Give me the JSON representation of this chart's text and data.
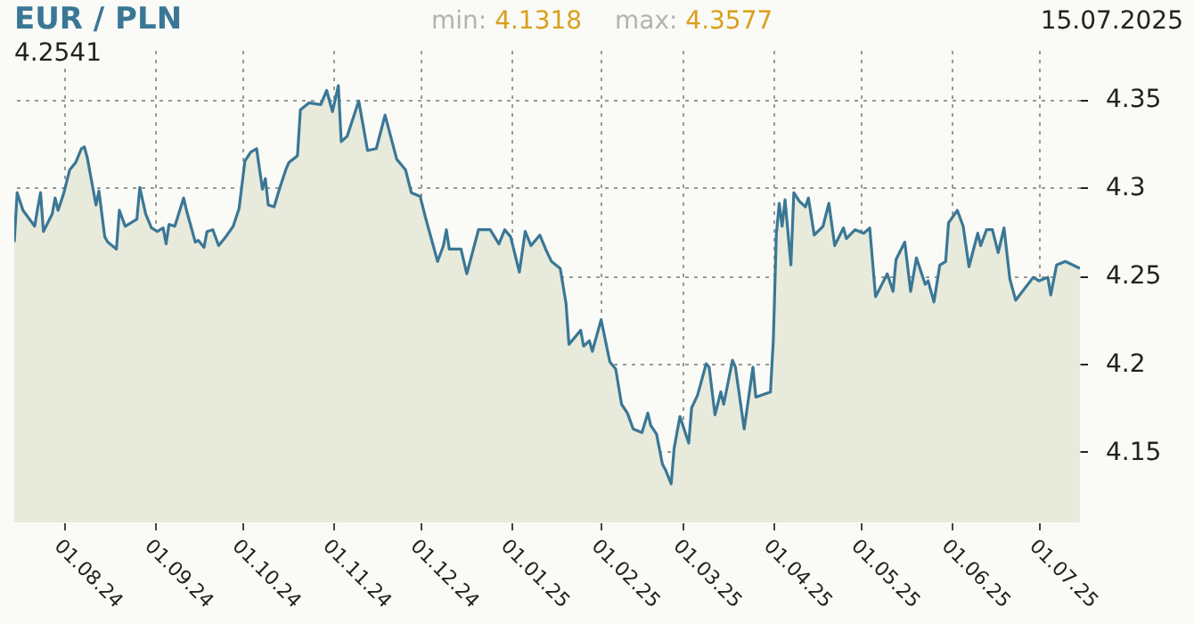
{
  "chart_data": {
    "type": "area",
    "title": "EUR / PLN",
    "annotations": [
      "4.2541",
      "min: 4.1318",
      "max: 4.3577",
      "15.07.2025"
    ],
    "x": [
      "2024-07-15",
      "2024-07-16",
      "2024-07-18",
      "2024-07-22",
      "2024-07-23",
      "2024-07-24",
      "2024-07-25",
      "2024-07-28",
      "2024-07-29",
      "2024-07-30",
      "2024-08-01",
      "2024-08-03",
      "2024-08-05",
      "2024-08-07",
      "2024-08-08",
      "2024-08-09",
      "2024-08-12",
      "2024-08-13",
      "2024-08-15",
      "2024-08-16",
      "2024-08-19",
      "2024-08-20",
      "2024-08-22",
      "2024-08-24",
      "2024-08-26",
      "2024-08-27",
      "2024-08-29",
      "2024-08-31",
      "2024-09-02",
      "2024-09-04",
      "2024-09-05",
      "2024-09-06",
      "2024-09-08",
      "2024-09-11",
      "2024-09-12",
      "2024-09-15",
      "2024-09-16",
      "2024-09-18",
      "2024-09-19",
      "2024-09-21",
      "2024-09-23",
      "2024-09-25",
      "2024-09-28",
      "2024-09-30",
      "2024-10-02",
      "2024-10-04",
      "2024-10-06",
      "2024-10-08",
      "2024-10-09",
      "2024-10-10",
      "2024-10-12",
      "2024-10-14",
      "2024-10-16",
      "2024-10-17",
      "2024-10-20",
      "2024-10-21",
      "2024-10-24",
      "2024-10-28",
      "2024-10-30",
      "2024-11-01",
      "2024-11-03",
      "2024-11-04",
      "2024-11-06",
      "2024-11-10",
      "2024-11-13",
      "2024-11-16",
      "2024-11-19",
      "2024-11-23",
      "2024-11-26",
      "2024-11-28",
      "2024-12-01",
      "2024-12-03",
      "2024-12-07",
      "2024-12-09",
      "2024-12-10",
      "2024-12-11",
      "2024-12-15",
      "2024-12-17",
      "2024-12-21",
      "2024-12-25",
      "2024-12-28",
      "2024-12-30",
      "2025-01-01",
      "2025-01-04",
      "2025-01-06",
      "2025-01-08",
      "2025-01-11",
      "2025-01-13",
      "2025-01-15",
      "2025-01-18",
      "2025-01-20",
      "2025-01-21",
      "2025-01-25",
      "2025-01-26",
      "2025-01-28",
      "2025-01-29",
      "2025-02-01",
      "2025-02-04",
      "2025-02-06",
      "2025-02-08",
      "2025-02-10",
      "2025-02-12",
      "2025-02-15",
      "2025-02-17",
      "2025-02-18",
      "2025-02-20",
      "2025-02-22",
      "2025-02-23",
      "2025-02-25",
      "2025-02-26",
      "2025-02-28",
      "2025-03-03",
      "2025-03-04",
      "2025-03-06",
      "2025-03-09",
      "2025-03-10",
      "2025-03-12",
      "2025-03-14",
      "2025-03-15",
      "2025-03-18",
      "2025-03-19",
      "2025-03-22",
      "2025-03-25",
      "2025-03-26",
      "2025-03-31",
      "2025-04-01",
      "2025-04-02",
      "2025-04-03",
      "2025-04-04",
      "2025-04-05",
      "2025-04-07",
      "2025-04-08",
      "2025-04-10",
      "2025-04-12",
      "2025-04-13",
      "2025-04-15",
      "2025-04-18",
      "2025-04-20",
      "2025-04-22",
      "2025-04-25",
      "2025-04-26",
      "2025-04-29",
      "2025-05-02",
      "2025-05-04",
      "2025-05-06",
      "2025-05-10",
      "2025-05-12",
      "2025-05-13",
      "2025-05-16",
      "2025-05-18",
      "2025-05-20",
      "2025-05-23",
      "2025-05-24",
      "2025-05-26",
      "2025-05-28",
      "2025-05-30",
      "2025-05-31",
      "2025-06-03",
      "2025-06-05",
      "2025-06-07",
      "2025-06-10",
      "2025-06-11",
      "2025-06-13",
      "2025-06-15",
      "2025-06-17",
      "2025-06-19",
      "2025-06-21",
      "2025-06-23",
      "2025-06-29",
      "2025-07-01",
      "2025-07-04",
      "2025-07-05",
      "2025-07-07",
      "2025-07-10",
      "2025-07-15"
    ],
    "series": [
      {
        "color": "#3a7796",
        "values": [
          4.269,
          4.297,
          4.287,
          4.278,
          4.288,
          4.297,
          4.275,
          4.285,
          4.294,
          4.287,
          4.297,
          4.31,
          4.314,
          4.322,
          4.323,
          4.317,
          4.29,
          4.298,
          4.272,
          4.269,
          4.265,
          4.287,
          4.278,
          4.28,
          4.282,
          4.3,
          4.285,
          4.277,
          4.275,
          4.277,
          4.268,
          4.279,
          4.278,
          4.294,
          4.287,
          4.269,
          4.27,
          4.266,
          4.275,
          4.276,
          4.267,
          4.271,
          4.278,
          4.288,
          4.315,
          4.32,
          4.322,
          4.299,
          4.305,
          4.29,
          4.289,
          4.3,
          4.31,
          4.314,
          4.318,
          4.344,
          4.348,
          4.347,
          4.355,
          4.343,
          4.3577,
          4.326,
          4.329,
          4.349,
          4.321,
          4.322,
          4.341,
          4.316,
          4.31,
          4.297,
          4.295,
          4.282,
          4.258,
          4.267,
          4.276,
          4.265,
          4.265,
          4.251,
          4.276,
          4.276,
          4.268,
          4.276,
          4.272,
          4.252,
          4.275,
          4.267,
          4.273,
          4.265,
          4.258,
          4.254,
          4.234,
          4.211,
          4.219,
          4.21,
          4.213,
          4.207,
          4.225,
          4.201,
          4.197,
          4.177,
          4.172,
          4.163,
          4.161,
          4.172,
          4.165,
          4.16,
          4.143,
          4.14,
          4.1318,
          4.152,
          4.17,
          4.155,
          4.175,
          4.182,
          4.2,
          4.198,
          4.171,
          4.184,
          4.177,
          4.202,
          4.198,
          4.163,
          4.198,
          4.181,
          4.184,
          4.214,
          4.273,
          4.291,
          4.278,
          4.293,
          4.256,
          4.297,
          4.292,
          4.289,
          4.294,
          4.273,
          4.278,
          4.291,
          4.267,
          4.277,
          4.271,
          4.276,
          4.274,
          4.277,
          4.238,
          4.251,
          4.241,
          4.259,
          4.269,
          4.241,
          4.26,
          4.245,
          4.247,
          4.235,
          4.256,
          4.258,
          4.28,
          4.287,
          4.278,
          4.255,
          4.274,
          4.267,
          4.276,
          4.276,
          4.263,
          4.277,
          4.248,
          4.236,
          4.249,
          4.247,
          4.249,
          4.239,
          4.256,
          4.258,
          4.2541
        ]
      }
    ],
    "xlim": [
      "2024-07-15",
      "2025-07-15"
    ],
    "xticks": [
      {
        "value": "2024-08-01",
        "label": "01.08.24"
      },
      {
        "value": "2024-09-01",
        "label": "01.09.24"
      },
      {
        "value": "2024-10-01",
        "label": "01.10.24"
      },
      {
        "value": "2024-11-01",
        "label": "01.11.24"
      },
      {
        "value": "2024-12-01",
        "label": "01.12.24"
      },
      {
        "value": "2025-01-01",
        "label": "01.01.25"
      },
      {
        "value": "2025-02-01",
        "label": "01.02.25"
      },
      {
        "value": "2025-03-01",
        "label": "01.03.25"
      },
      {
        "value": "2025-04-01",
        "label": "01.04.25"
      },
      {
        "value": "2025-05-01",
        "label": "01.05.25"
      },
      {
        "value": "2025-06-01",
        "label": "01.06.25"
      },
      {
        "value": "2025-07-01",
        "label": "01.07.25"
      }
    ],
    "ylim": [
      4.11,
      4.378
    ],
    "yticks": [
      4.15,
      4.2,
      4.25,
      4.3,
      4.35
    ],
    "grid": true,
    "marker": "none",
    "line_style": "solid"
  }
}
